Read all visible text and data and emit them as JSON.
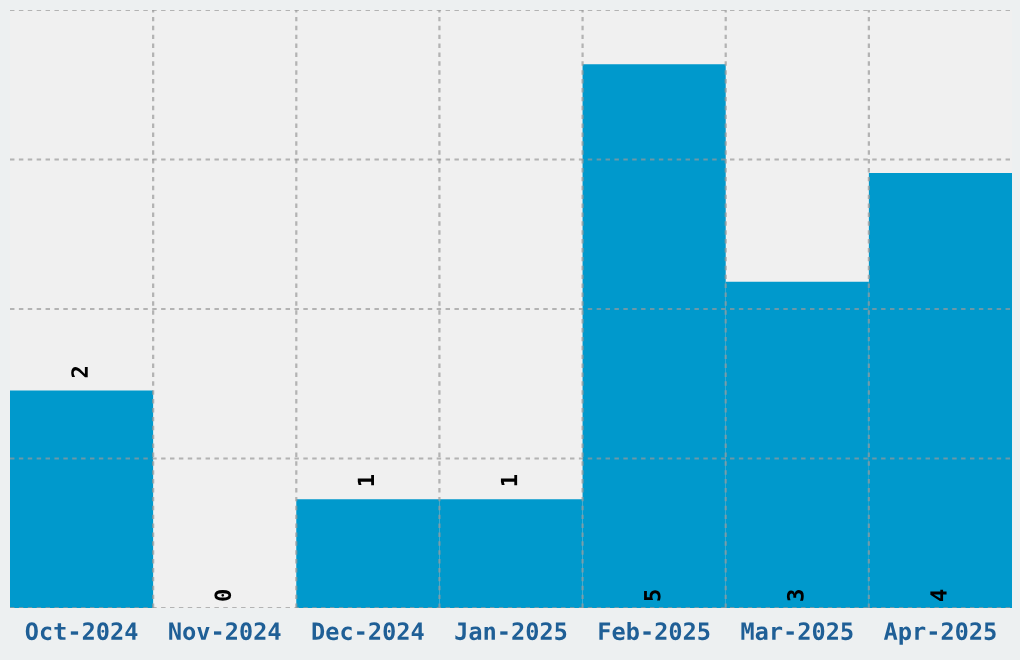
{
  "chart_data": {
    "type": "bar",
    "categories": [
      "Oct-2024",
      "Nov-2024",
      "Dec-2024",
      "Jan-2025",
      "Feb-2025",
      "Mar-2025",
      "Apr-2025"
    ],
    "values": [
      2,
      0,
      1,
      1,
      5,
      3,
      4
    ],
    "color": "#0099cc",
    "ylim": [
      0,
      5.5
    ],
    "yticks": [
      {
        "value": 0,
        "label": null
      },
      {
        "value": 1.375,
        "label": null
      },
      {
        "value": 2.75,
        "label": null
      },
      {
        "value": 4.125,
        "label": null
      },
      {
        "value": 5.5,
        "label": null
      }
    ],
    "tick_labels": "x",
    "grid": true,
    "data_labels": true
  }
}
